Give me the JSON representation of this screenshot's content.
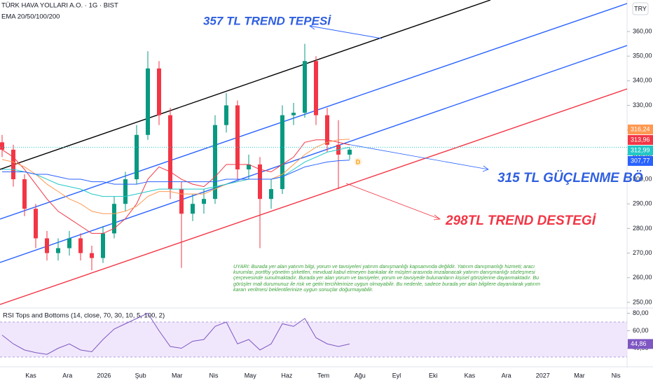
{
  "chart_data": {
    "type": "candlestick",
    "title": "TÜRK HAVA YOLLARI A.O. · 1G · BIST",
    "subtitle": "EMA 20/50/100/200",
    "currency": "TRY",
    "up_color": "#089981",
    "down_color": "#f23645",
    "open": [
      315,
      312,
      300,
      288,
      276,
      270,
      272,
      276,
      270,
      268,
      278,
      290,
      300,
      318,
      345,
      326,
      296,
      286,
      290,
      292,
      322,
      330,
      304,
      306,
      292,
      296,
      326,
      327,
      348,
      326,
      314,
      310
    ],
    "high": [
      318,
      314,
      302,
      290,
      279,
      276,
      279,
      278,
      273,
      281,
      293,
      303,
      322,
      352,
      348,
      329,
      299,
      294,
      296,
      326,
      335,
      332,
      310,
      309,
      300,
      330,
      331,
      355,
      350,
      329,
      324,
      313
    ],
    "low": [
      309,
      297,
      285,
      272,
      267,
      267,
      269,
      267,
      263,
      266,
      276,
      287,
      298,
      316,
      322,
      292,
      264,
      283,
      286,
      290,
      319,
      300,
      300,
      272,
      288,
      294,
      322,
      325,
      322,
      311,
      296,
      308
    ],
    "close": [
      312,
      300,
      288,
      276,
      270,
      272,
      276,
      270,
      268,
      278,
      290,
      300,
      318,
      345,
      326,
      296,
      286,
      290,
      292,
      322,
      330,
      304,
      306,
      292,
      296,
      326,
      327,
      348,
      326,
      314,
      310,
      312
    ],
    "series": [
      {
        "name": "EMA 20",
        "color": "#f23645",
        "values": [
          312,
          309,
          304,
          298,
          292,
          287,
          284,
          281,
          278,
          278,
          280,
          284,
          290,
          300,
          305,
          303,
          300,
          298,
          297,
          301,
          306,
          306,
          306,
          304,
          303,
          306,
          309,
          315,
          316,
          316,
          315,
          313.96
        ]
      },
      {
        "name": "EMA 50",
        "color": "#ff9850",
        "values": [
          308,
          307,
          305,
          302,
          298,
          295,
          292,
          290,
          287,
          286,
          286,
          287,
          289,
          293,
          295,
          295,
          294,
          294,
          294,
          296,
          298,
          299,
          300,
          300,
          300,
          302,
          306,
          310,
          313,
          315,
          316,
          316.24
        ]
      },
      {
        "name": "EMA 100",
        "color": "#22c7c7",
        "values": [
          304,
          304,
          303,
          302,
          300,
          298,
          297,
          296,
          294,
          293,
          293,
          293,
          294,
          295,
          296,
          296,
          296,
          296,
          296,
          297,
          298,
          299,
          300,
          300,
          300,
          301,
          304,
          307,
          309,
          311,
          312,
          312.99
        ]
      },
      {
        "name": "EMA 200",
        "color": "#2962ff",
        "values": [
          303,
          303,
          303,
          302,
          302,
          301,
          300,
          300,
          299,
          299,
          298,
          298,
          298,
          299,
          299,
          299,
          299,
          299,
          299,
          299,
          300,
          300,
          300,
          300,
          300,
          301,
          303,
          305,
          306,
          307,
          307.5,
          307.77
        ]
      }
    ],
    "price_labels": [
      {
        "value": 316.24,
        "label": "316,24",
        "color": "#ff9850"
      },
      {
        "value": 313.96,
        "label": "313,96",
        "color": "#f23645"
      },
      {
        "value": 312.99,
        "label": "312,99",
        "color": "#22c7c7"
      },
      {
        "value": 307.77,
        "label": "307,77",
        "color": "#2962ff"
      }
    ],
    "ylim": [
      247.7,
      372.8
    ],
    "yticks": [
      {
        "value": 250,
        "label": "250,00"
      },
      {
        "value": 260,
        "label": "260,00"
      },
      {
        "value": 270,
        "label": "270,00"
      },
      {
        "value": 280,
        "label": "280,00"
      },
      {
        "value": 290,
        "label": "290,00"
      },
      {
        "value": 300,
        "label": "300,00"
      },
      {
        "value": 310,
        "label": "310,00"
      },
      {
        "value": 320,
        "label": "320,00"
      },
      {
        "value": 330,
        "label": "330,00"
      },
      {
        "value": 340,
        "label": "340,00"
      },
      {
        "value": 350,
        "label": "350,00"
      },
      {
        "value": 360,
        "label": "360,00"
      }
    ],
    "time_labels": [
      "Kas",
      "Ara",
      "2026",
      "Şub",
      "Mar",
      "Nis",
      "May",
      "Haz",
      "Tem",
      "Ağu",
      "Eyl",
      "Eki",
      "Kas",
      "Ara",
      "2027",
      "Mar",
      "Nis"
    ],
    "annotations": [
      {
        "text": "357 TL TREND TEPESİ",
        "color": "#2f5fe0"
      },
      {
        "text": "315 TL GÜÇLENME BÖ",
        "color": "#2f5fe0"
      },
      {
        "text": "298TL TREND DESTEGİ",
        "color": "#f23645"
      }
    ],
    "marker": "D",
    "disclaimer": "UYARI: Burada yer alan yatırım bilgi, yorum ve tavsiyeleri yatırım danışmanlığı kapsamında değildir. Yatırım danışmanlığı hizmeti; aracı kurumlar, portföy yönetim şirketleri, mevduat kabul etmeyen bankalar ile müşteri arasında imzalanacak yatırım danışmanlığı sözleşmesi çerçevesinde sunulmaktadır. Burada yer alan yorum ve tavsiyeler, yorum ve tavsiyede bulunanların kişisel görüşlerine dayanmaktadır. Bu görüşler mali durumunuz ile risk ve getiri tercihlerinize uygun olmayabilir. Bu nedenle, sadece burada yer alan bilgilere dayanılarak yatırım kararı verilmesi beklentilerinize uygun sonuçlar doğurmayabilir.",
    "indicator": {
      "title": "RSI Tops and Bottoms (14, close, 70, 30, 10, 5, 100, 2)",
      "color": "#7e57c2",
      "values": [
        55,
        45,
        38,
        35,
        33,
        40,
        45,
        38,
        36,
        50,
        62,
        68,
        74,
        80,
        60,
        42,
        40,
        48,
        50,
        65,
        70,
        45,
        50,
        38,
        45,
        68,
        65,
        74,
        52,
        45,
        42,
        44.86
      ],
      "value_label": "44,86",
      "band": [
        30,
        70
      ],
      "band_color": "#e9ddfb",
      "ylim": [
        22,
        86
      ],
      "yticks": [
        {
          "value": 40,
          "label": "40,00"
        },
        {
          "value": 60,
          "label": "60,00"
        },
        {
          "value": 80,
          "label": "80,00"
        }
      ]
    }
  }
}
